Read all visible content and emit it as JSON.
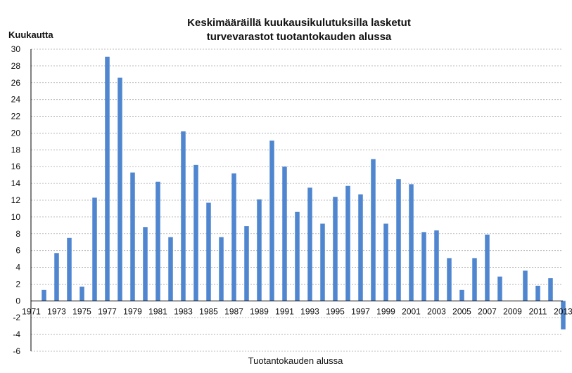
{
  "chart_data": {
    "type": "bar",
    "title_lines": [
      "Keskimääräillä kuukausikulutuksilla lasketut",
      "turvevarastot tuotantokauden alussa"
    ],
    "ylabel": "Kuukautta",
    "xlabel": "Tuotantokauden alussa",
    "ylim": [
      -6,
      30
    ],
    "ytick_step": 2,
    "grid": true,
    "bar_color": "#4f86cf",
    "x_tick_labels": [
      "1971",
      "1973",
      "1975",
      "1977",
      "1979",
      "1981",
      "1983",
      "1985",
      "1987",
      "1989",
      "1991",
      "1993",
      "1995",
      "1997",
      "1999",
      "2001",
      "2003",
      "2005",
      "2007",
      "2009",
      "2011",
      "2013"
    ],
    "categories": [
      1971,
      1972,
      1973,
      1974,
      1975,
      1976,
      1977,
      1978,
      1979,
      1980,
      1981,
      1982,
      1983,
      1984,
      1985,
      1986,
      1987,
      1988,
      1989,
      1990,
      1991,
      1992,
      1993,
      1994,
      1995,
      1996,
      1997,
      1998,
      1999,
      2000,
      2001,
      2002,
      2003,
      2004,
      2005,
      2006,
      2007,
      2008,
      2009,
      2010,
      2011,
      2012,
      2013
    ],
    "values": [
      0,
      1.3,
      5.7,
      7.5,
      1.7,
      12.3,
      29.1,
      26.6,
      15.3,
      8.8,
      14.2,
      7.6,
      20.2,
      16.2,
      11.7,
      7.6,
      15.2,
      8.9,
      12.1,
      19.1,
      16.0,
      10.6,
      13.5,
      9.2,
      12.4,
      13.7,
      12.7,
      16.9,
      9.2,
      14.5,
      13.9,
      8.2,
      8.4,
      5.1,
      1.3,
      5.1,
      7.9,
      2.9,
      0,
      3.6,
      1.8,
      2.7,
      -3.4
    ]
  }
}
